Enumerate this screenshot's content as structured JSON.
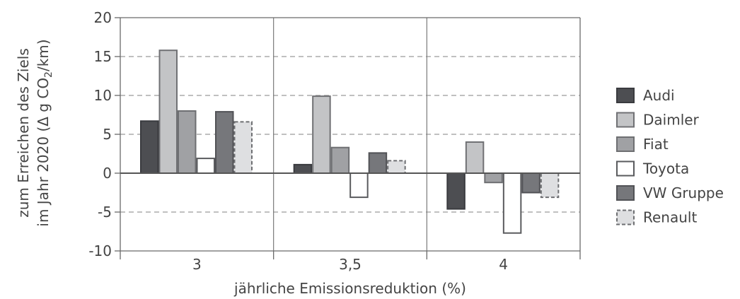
{
  "chart_data": {
    "type": "bar",
    "categories": [
      "3",
      "3,5",
      "4"
    ],
    "series": [
      {
        "name": "Audi",
        "values": [
          6.7,
          1.1,
          -4.6
        ],
        "fill": "#4d4e52",
        "stroke": "#3a3b3f",
        "dashed": false
      },
      {
        "name": "Daimler",
        "values": [
          15.8,
          9.9,
          4.0
        ],
        "fill": "#c3c4c6",
        "stroke": "#707174",
        "dashed": false
      },
      {
        "name": "Fiat",
        "values": [
          8.0,
          3.3,
          -1.2
        ],
        "fill": "#a0a1a4",
        "stroke": "#6e6f72",
        "dashed": false
      },
      {
        "name": "Toyota",
        "values": [
          1.9,
          -3.1,
          -7.7
        ],
        "fill": "#ffffff",
        "stroke": "#5a5b5e",
        "dashed": false
      },
      {
        "name": "VW Gruppe",
        "values": [
          7.9,
          2.6,
          -2.5
        ],
        "fill": "#76777b",
        "stroke": "#515256",
        "dashed": false
      },
      {
        "name": "Renault",
        "values": [
          6.6,
          1.6,
          -3.1
        ],
        "fill": "#dedfe1",
        "stroke": "#6e6f72",
        "dashed": true
      }
    ],
    "ylim": [
      -10,
      20
    ],
    "yticks": [
      20,
      15,
      10,
      5,
      0,
      -5,
      -10
    ],
    "ytick_labels": [
      "20",
      "15",
      "10",
      "5",
      "0",
      "-5",
      "-10"
    ],
    "xlabel": "jährliche Emissionsreduktion (%)",
    "ylabel_line1": "zum Erreichen des Ziels",
    "ylabel_line2_pre": "im Jahr 2020 (Δ g CO",
    "ylabel_line2_sub": "2",
    "ylabel_line2_post": "/km)",
    "grid": "horizontal dashed, vertical group separators",
    "legend_position": "right"
  }
}
